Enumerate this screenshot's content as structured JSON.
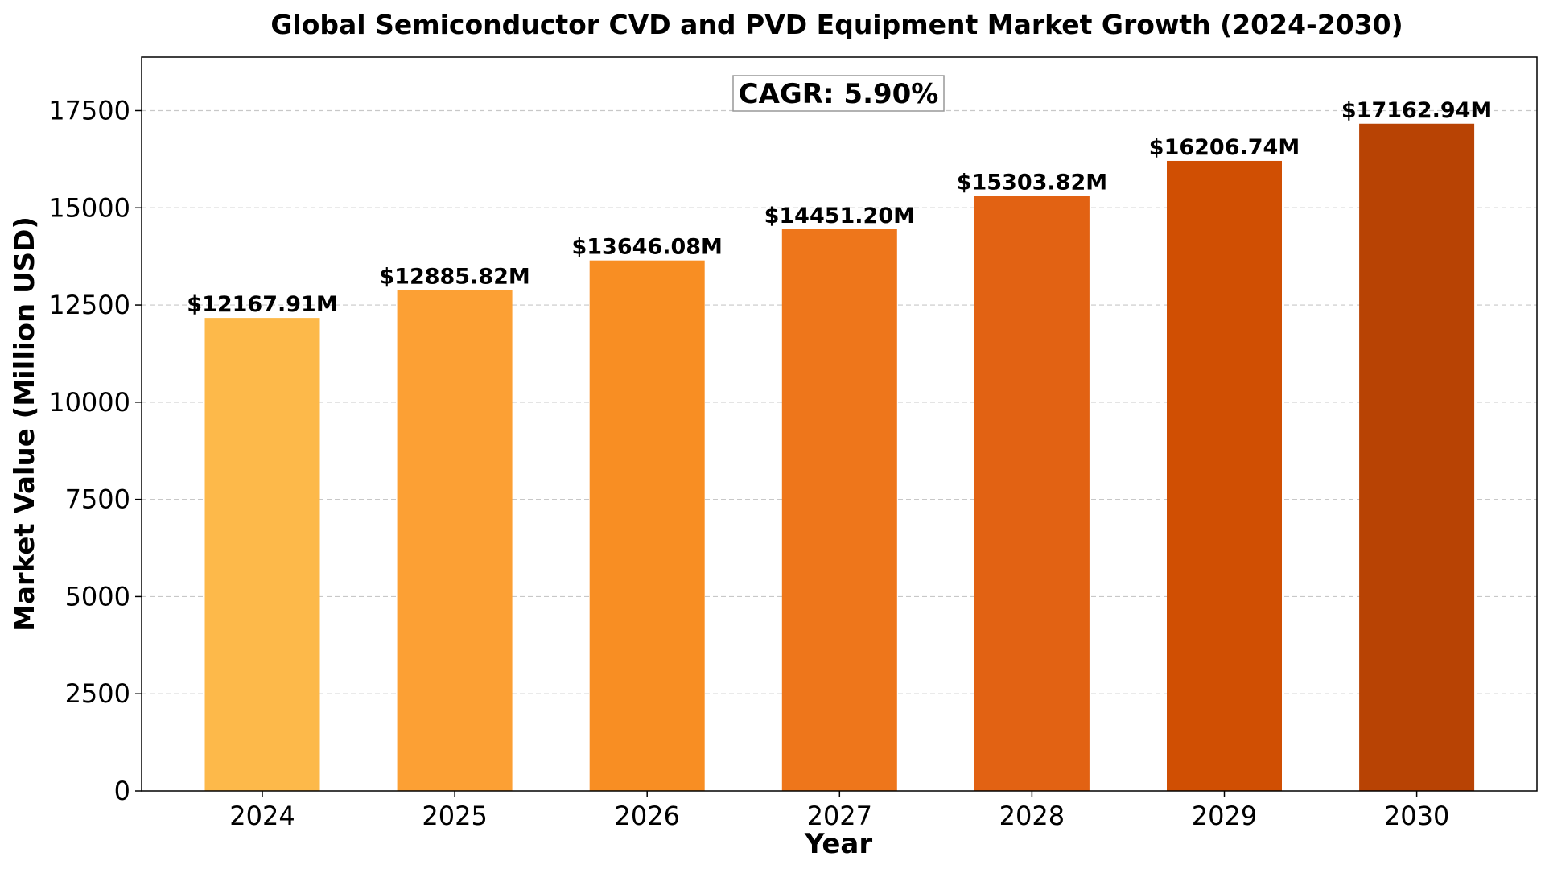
{
  "chart_data": {
    "type": "bar",
    "title": "Global Semiconductor CVD and PVD Equipment Market Growth (2024-2030)",
    "xlabel": "Year",
    "ylabel": "Market Value (Million USD)",
    "categories": [
      "2024",
      "2025",
      "2026",
      "2027",
      "2028",
      "2029",
      "2030"
    ],
    "values": [
      12167.91,
      12885.82,
      13646.08,
      14451.2,
      15303.82,
      16206.74,
      17162.94
    ],
    "value_labels": [
      "$12167.91M",
      "$12885.82M",
      "$13646.08M",
      "$14451.20M",
      "$15303.82M",
      "$16206.74M",
      "$17162.94M"
    ],
    "colors": [
      "#FDB94A",
      "#FCA034",
      "#F88E23",
      "#EE761B",
      "#E26213",
      "#D04F03",
      "#B84304"
    ],
    "ylim": [
      0,
      18876
    ],
    "yticks": [
      0,
      2500,
      5000,
      7500,
      10000,
      12500,
      15000,
      17500
    ],
    "grid": "y-dashed",
    "annotation": "CAGR: 5.90%"
  }
}
